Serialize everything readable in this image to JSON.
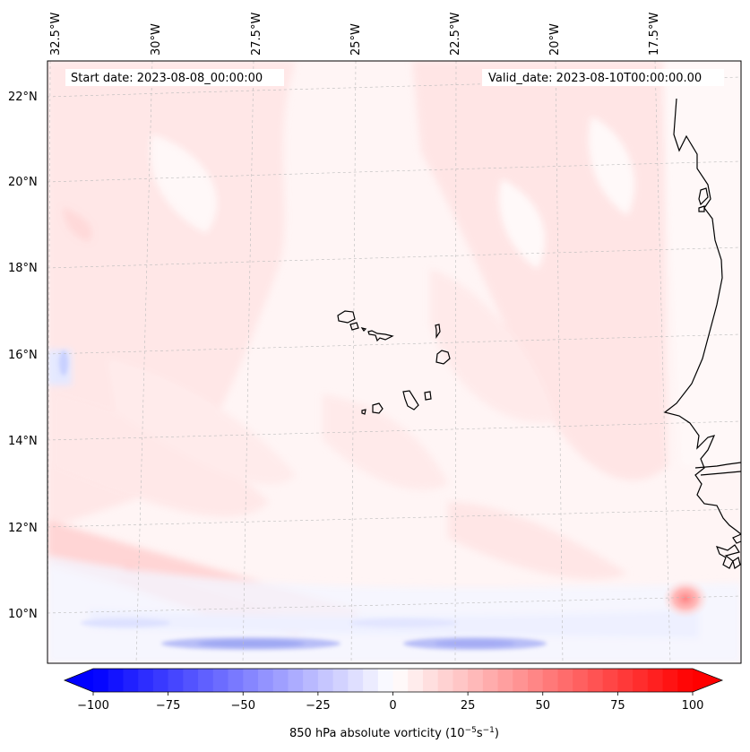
{
  "map": {
    "start_date_label": "Start date: 2023-08-08_00:00:00",
    "valid_date_label": "Valid_date: 2023-08-10T00:00:00.00",
    "longitude_labels": [
      "32.5°W",
      "30°W",
      "27.5°W",
      "25°W",
      "22.5°W",
      "20°W",
      "17.5°W"
    ],
    "latitude_labels": [
      "22°N",
      "20°N",
      "18°N",
      "16°N",
      "14°N",
      "12°N",
      "10°N"
    ]
  },
  "colorbar": {
    "ticks": [
      "−100",
      "−75",
      "−50",
      "−25",
      "0",
      "25",
      "50",
      "75",
      "100"
    ],
    "label_main": "850 hPa absolute vorticity (10",
    "label_exp1": "−5",
    "label_mid": "s",
    "label_exp2": "−1",
    "label_end": ")",
    "range": [
      -100,
      100
    ],
    "colors": {
      "negative": "#0000ff",
      "neutral": "#ffffff",
      "positive": "#ff0000"
    }
  }
}
